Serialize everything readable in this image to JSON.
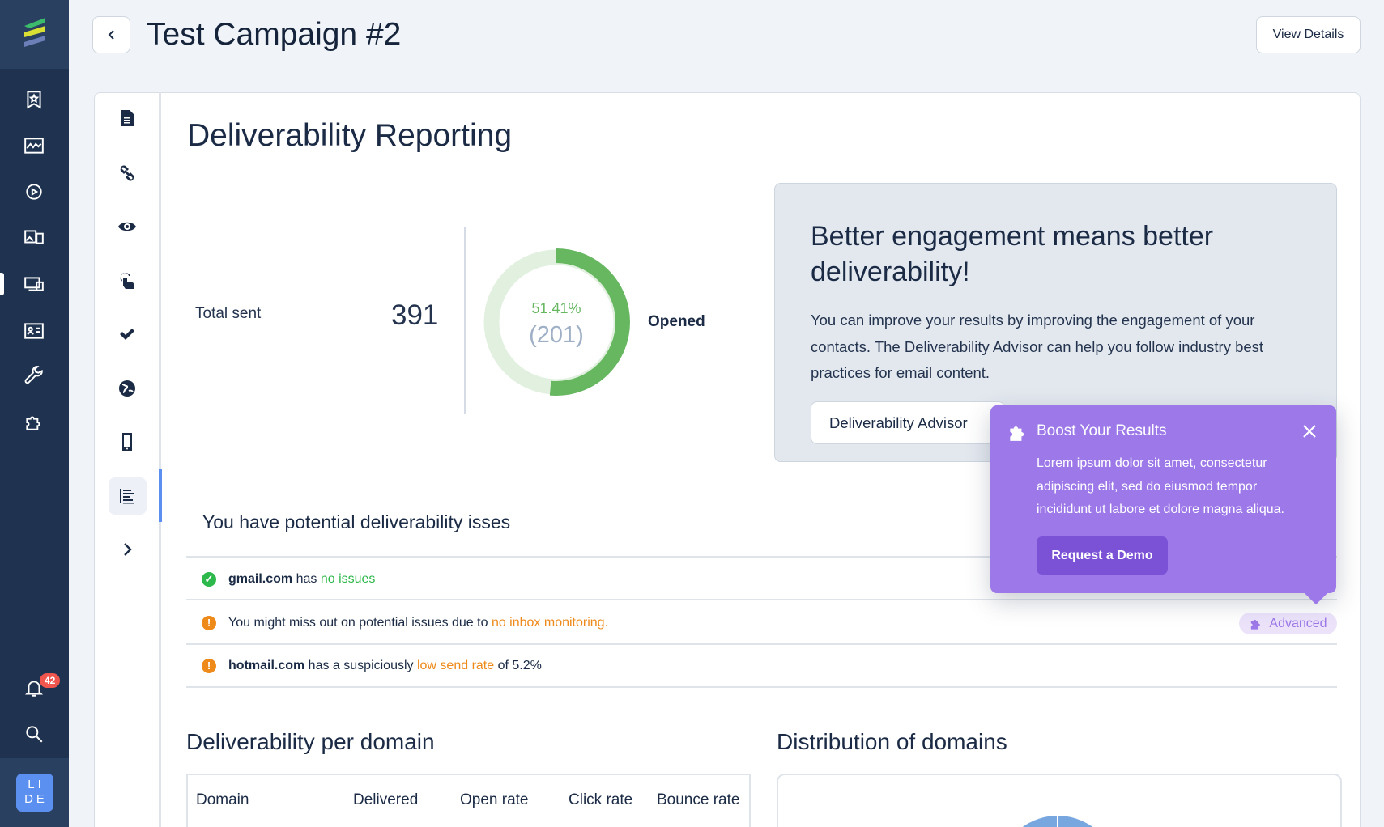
{
  "nav": {
    "items": [
      "bookmark-star-icon",
      "chart-icon",
      "gear-play-icon",
      "media-icon",
      "devices-icon",
      "contact-card-icon",
      "wrench-icon",
      "puzzle-icon"
    ],
    "notifications_count": "42",
    "avatar_initials": "LI DE"
  },
  "header": {
    "title": "Test Campaign #2",
    "view_details": "View Details"
  },
  "report": {
    "title": "Deliverability Reporting",
    "total_sent_label": "Total sent",
    "total_sent": "391",
    "opened_percent": "51.41%",
    "opened_count": "(201)",
    "opened_label": "Opened",
    "opened_fraction": 0.5141
  },
  "engagement": {
    "heading_line1": "Better engagement means better",
    "heading_line2": "deliverability!",
    "body_line1": "You can improve your results by improving the engagement of your",
    "body_line2": "contacts. The Deliverability Advisor can help you follow industry best",
    "body_line3": "practices for email content.",
    "button": "Deliverability Advisor"
  },
  "popup": {
    "title": "Boost Your Results",
    "line1": "Lorem ipsum dolor sit amet, consectetur",
    "line2": "adipiscing elit, sed do eiusmod tempor",
    "line3": "incididunt ut labore et dolore magna aliqua.",
    "button": "Request a Demo",
    "color": "#9d78e8"
  },
  "issues": {
    "title": "You have potential deliverability isses",
    "rows": [
      {
        "bold": "gmail.com",
        "text": " has ",
        "highlight": "no issues",
        "after": "",
        "status": "ok"
      },
      {
        "bold": "",
        "text": "You might miss out on potential issues due to ",
        "highlight": "no inbox monitoring.",
        "after": "",
        "status": "warning"
      },
      {
        "bold": "hotmail.com",
        "text": " has a suspiciously ",
        "highlight": "low send rate",
        "after": " of 5.2%",
        "status": "warning"
      }
    ],
    "advanced_label": "Advanced"
  },
  "domains": {
    "title": "Deliverability per domain",
    "columns": [
      "Domain",
      "Delivered",
      "Open rate",
      "Click rate",
      "Bounce rate"
    ]
  },
  "distribution": {
    "title": "Distribution of domains"
  },
  "colors": {
    "ok": "#2db84b",
    "warning": "#ee8a1a",
    "green": "#66b760",
    "purple": "#9d78e8"
  }
}
